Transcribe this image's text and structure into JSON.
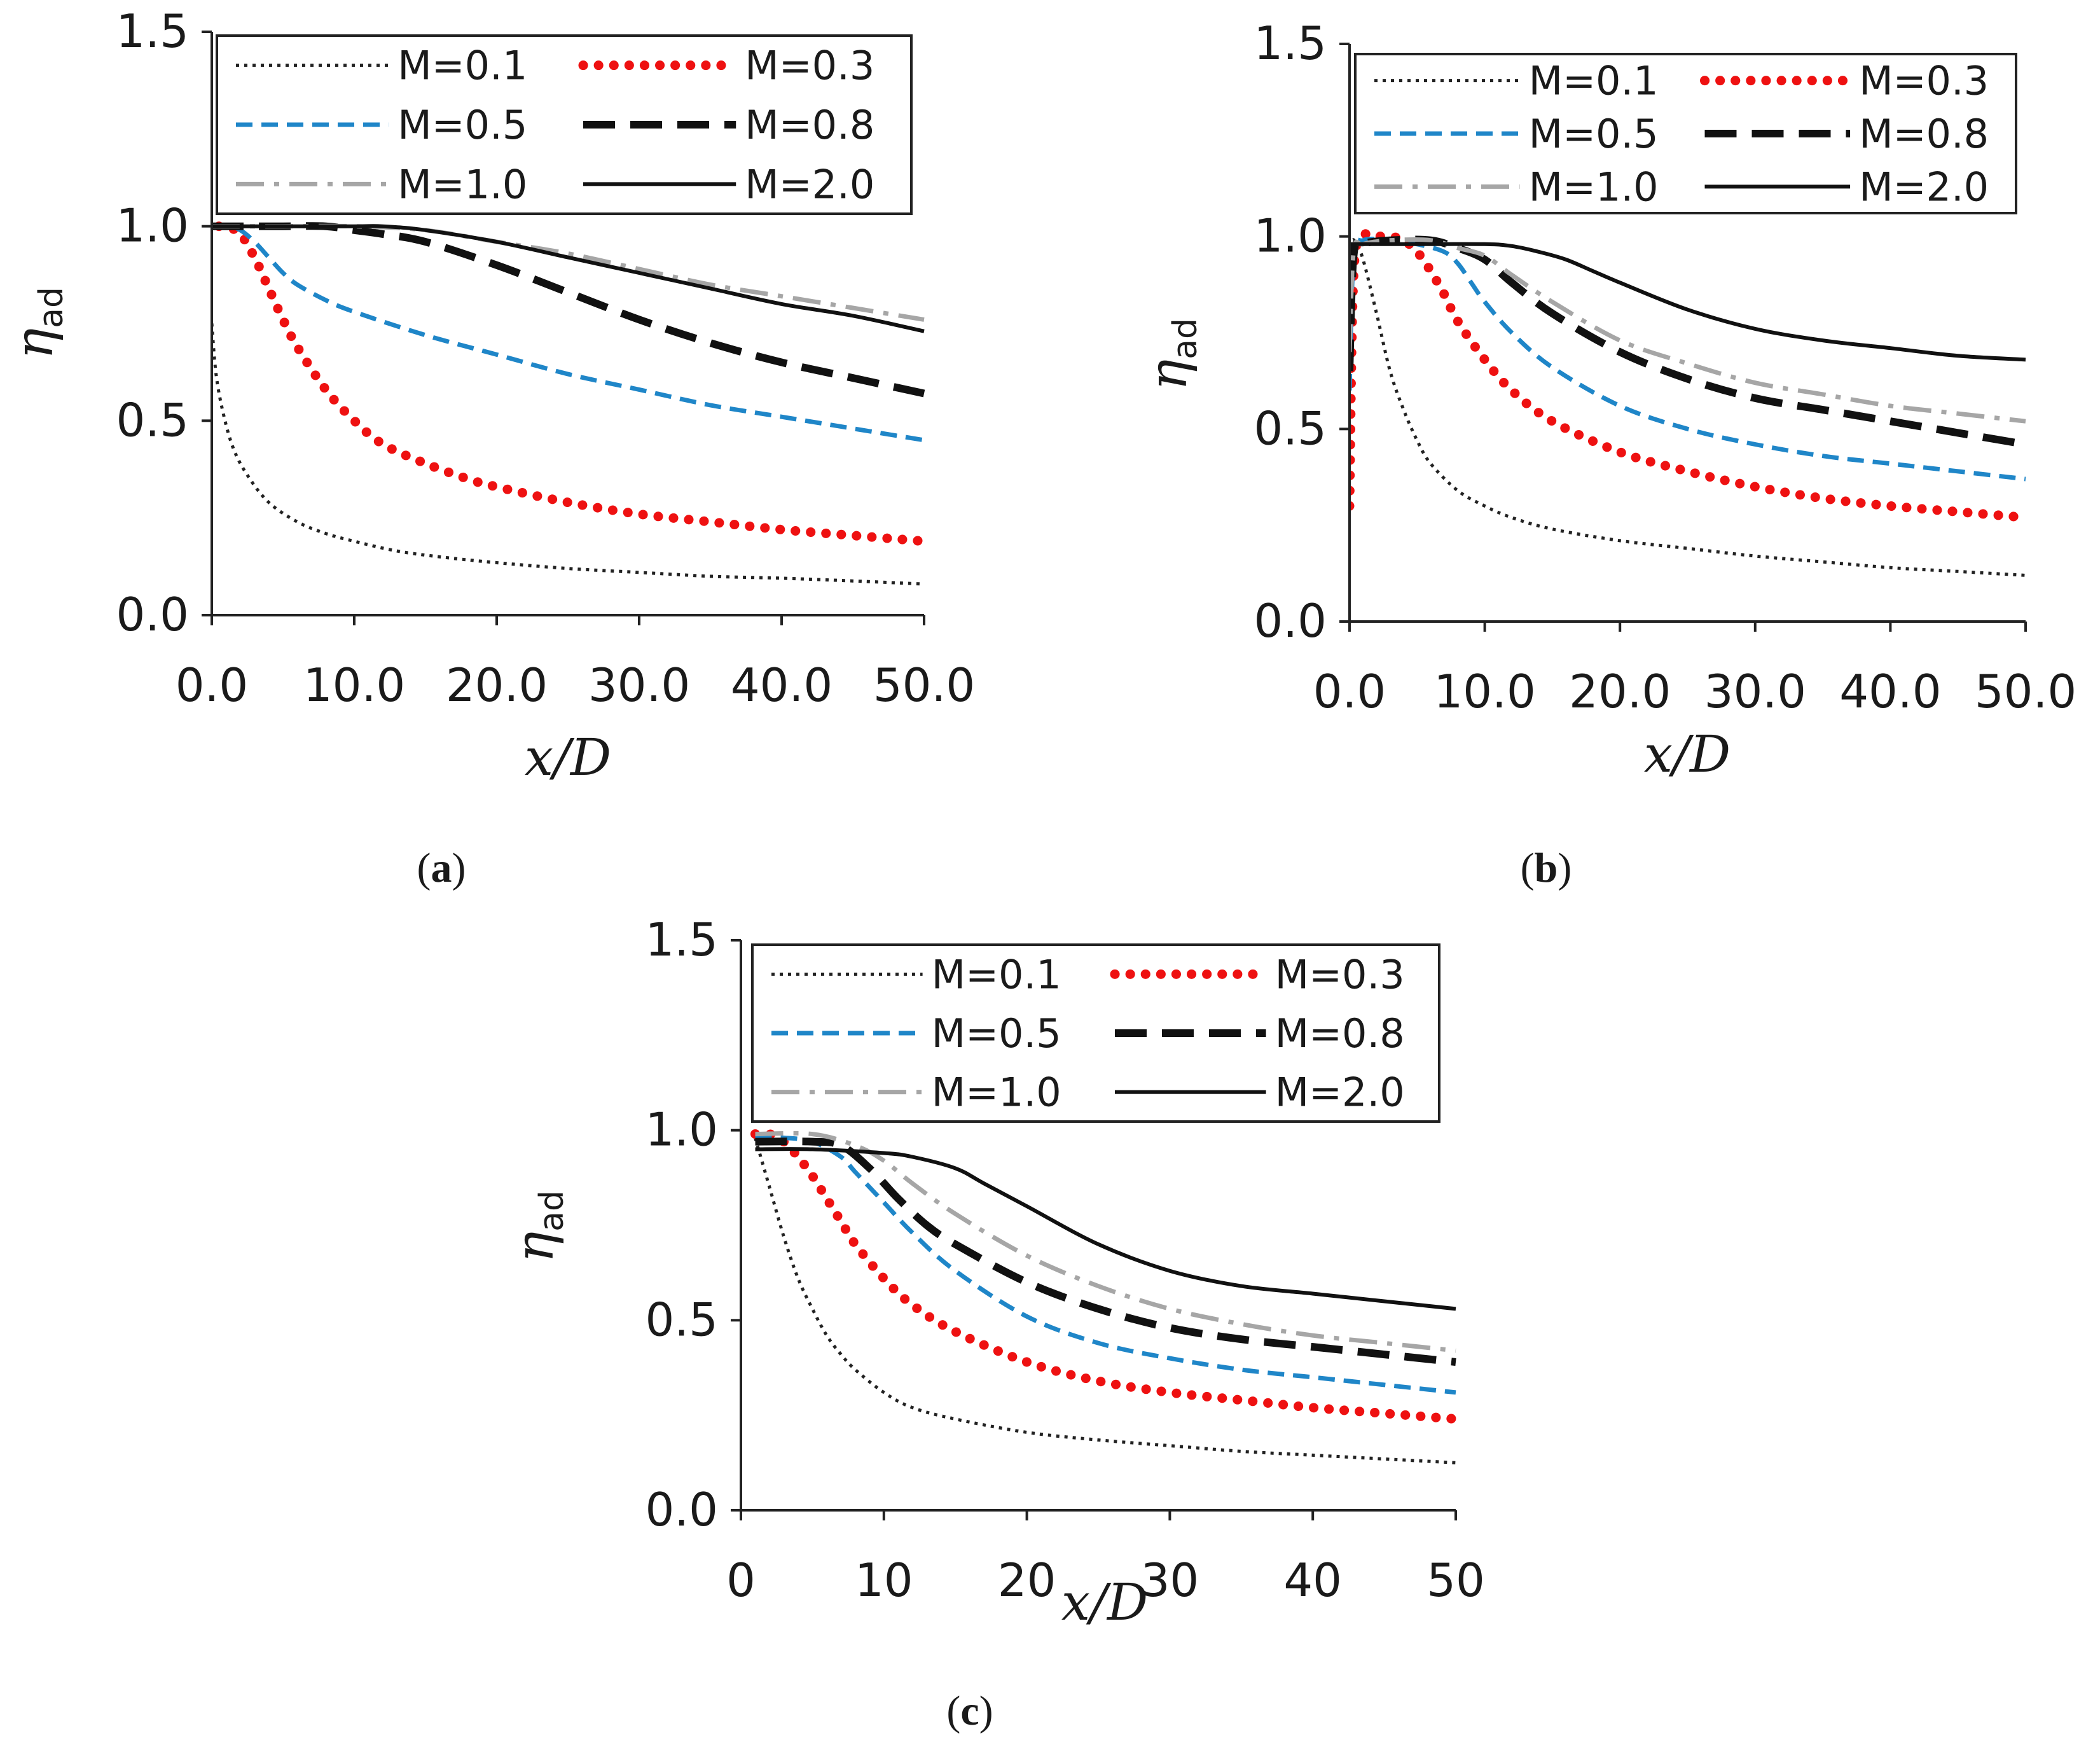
{
  "chart_data": [
    {
      "type": "line",
      "panel_label": "a",
      "xlabel": "x/D",
      "ylabel": "η",
      "ylabel_sub": "ad",
      "xlim": [
        0,
        50
      ],
      "ylim": [
        0,
        1.5
      ],
      "xticks": [
        "0.0",
        "10.0",
        "20.0",
        "30.0",
        "40.0",
        "50.0"
      ],
      "yticks": [
        "0.0",
        "0.5",
        "1.0",
        "1.5"
      ],
      "legend_position": "top",
      "series": [
        {
          "name": "M=0.1",
          "style": "dotted-thin",
          "color": "#222222",
          "x": [
            0,
            0.3,
            0.8,
            1.5,
            2.5,
            4,
            6,
            8,
            10,
            13,
            16,
            20,
            25,
            30,
            35,
            40,
            45,
            50
          ],
          "y": [
            0.75,
            0.62,
            0.52,
            0.43,
            0.36,
            0.29,
            0.24,
            0.21,
            0.19,
            0.165,
            0.15,
            0.135,
            0.12,
            0.11,
            0.1,
            0.095,
            0.088,
            0.08
          ]
        },
        {
          "name": "M=0.3",
          "style": "dotted-bold",
          "color": "#ee1111",
          "x": [
            0.5,
            1,
            2,
            3,
            4,
            5,
            6,
            8,
            10,
            12,
            15,
            18,
            20,
            25,
            30,
            35,
            40,
            45,
            50
          ],
          "y": [
            1.0,
            1.0,
            0.98,
            0.92,
            0.84,
            0.76,
            0.69,
            0.58,
            0.5,
            0.44,
            0.39,
            0.35,
            0.33,
            0.29,
            0.26,
            0.24,
            0.22,
            0.205,
            0.19
          ]
        },
        {
          "name": "M=0.5",
          "style": "dashed",
          "color": "#1f86c8",
          "x": [
            0,
            1,
            2,
            3,
            4,
            5,
            6,
            8,
            10,
            15,
            20,
            25,
            30,
            35,
            40,
            45,
            50
          ],
          "y": [
            1.0,
            1.0,
            0.99,
            0.96,
            0.92,
            0.88,
            0.85,
            0.81,
            0.78,
            0.72,
            0.67,
            0.62,
            0.58,
            0.54,
            0.51,
            0.48,
            0.45
          ]
        },
        {
          "name": "M=0.8",
          "style": "long-dash",
          "color": "#111111",
          "x": [
            0,
            5,
            8,
            10,
            12,
            15,
            20,
            25,
            30,
            35,
            40,
            45,
            50
          ],
          "y": [
            1.0,
            1.0,
            1.0,
            0.99,
            0.98,
            0.96,
            0.9,
            0.83,
            0.76,
            0.7,
            0.65,
            0.61,
            0.57
          ]
        },
        {
          "name": "M=1.0",
          "style": "dash-dot",
          "color": "#a6a6a6",
          "x": [
            0,
            5,
            10,
            15,
            20,
            25,
            30,
            35,
            40,
            45,
            50
          ],
          "y": [
            1.0,
            1.0,
            1.0,
            0.99,
            0.96,
            0.93,
            0.89,
            0.85,
            0.82,
            0.79,
            0.76
          ]
        },
        {
          "name": "M=2.0",
          "style": "solid",
          "color": "#111111",
          "x": [
            0,
            5,
            10,
            12,
            15,
            20,
            25,
            30,
            35,
            40,
            45,
            50
          ],
          "y": [
            1.0,
            1.0,
            1.0,
            1.0,
            0.99,
            0.96,
            0.92,
            0.88,
            0.84,
            0.8,
            0.77,
            0.73
          ]
        }
      ]
    },
    {
      "type": "line",
      "panel_label": "b",
      "xlabel": "x/D",
      "ylabel": "η",
      "ylabel_sub": "ad",
      "xlim": [
        0,
        50
      ],
      "ylim": [
        0,
        1.5
      ],
      "xticks": [
        "0.0",
        "10.0",
        "20.0",
        "30.0",
        "40.0",
        "50.0"
      ],
      "yticks": [
        "0.0",
        "0.5",
        "1.0",
        "1.5"
      ],
      "legend_position": "top",
      "series": [
        {
          "name": "M=0.1",
          "style": "dotted-thin",
          "color": "#222222",
          "x": [
            0,
            0.2,
            0.5,
            1,
            2,
            3,
            4,
            5,
            6,
            8,
            10,
            12,
            15,
            20,
            25,
            30,
            35,
            40,
            45,
            50
          ],
          "y": [
            0.95,
            0.99,
            0.98,
            0.94,
            0.8,
            0.65,
            0.55,
            0.47,
            0.41,
            0.34,
            0.3,
            0.27,
            0.24,
            0.21,
            0.19,
            0.17,
            0.155,
            0.14,
            0.13,
            0.12
          ]
        },
        {
          "name": "M=0.3",
          "style": "dotted-bold",
          "color": "#ee1111",
          "x": [
            0,
            0.3,
            1,
            2,
            3,
            4,
            5,
            6,
            7,
            8,
            10,
            12,
            15,
            20,
            25,
            30,
            35,
            40,
            45,
            50
          ],
          "y": [
            0.3,
            0.9,
            1.0,
            1.0,
            1.0,
            0.99,
            0.96,
            0.91,
            0.85,
            0.78,
            0.68,
            0.6,
            0.52,
            0.44,
            0.39,
            0.35,
            0.32,
            0.3,
            0.285,
            0.27
          ]
        },
        {
          "name": "M=0.5",
          "style": "dashed",
          "color": "#1f86c8",
          "x": [
            0,
            0.3,
            1,
            3,
            5,
            7,
            8,
            9,
            10,
            12,
            15,
            20,
            25,
            30,
            35,
            40,
            45,
            50
          ],
          "y": [
            0.6,
            0.95,
            0.99,
            0.99,
            0.98,
            0.96,
            0.93,
            0.88,
            0.83,
            0.75,
            0.66,
            0.56,
            0.5,
            0.46,
            0.43,
            0.41,
            0.39,
            0.37
          ]
        },
        {
          "name": "M=0.8",
          "style": "long-dash",
          "color": "#111111",
          "x": [
            0,
            0.3,
            1,
            3,
            6,
            8,
            10,
            12,
            15,
            20,
            25,
            30,
            35,
            40,
            45,
            50
          ],
          "y": [
            0.65,
            0.95,
            0.98,
            0.99,
            0.99,
            0.97,
            0.94,
            0.88,
            0.8,
            0.7,
            0.63,
            0.58,
            0.55,
            0.52,
            0.49,
            0.46
          ]
        },
        {
          "name": "M=1.0",
          "style": "dash-dot",
          "color": "#a6a6a6",
          "x": [
            0,
            0.3,
            1,
            3,
            6,
            8,
            10,
            12,
            15,
            20,
            25,
            30,
            35,
            40,
            45,
            50
          ],
          "y": [
            0.7,
            0.96,
            0.98,
            0.99,
            0.99,
            0.97,
            0.95,
            0.9,
            0.83,
            0.73,
            0.67,
            0.62,
            0.59,
            0.56,
            0.54,
            0.52
          ]
        },
        {
          "name": "M=2.0",
          "style": "solid",
          "color": "#111111",
          "x": [
            0,
            0.5,
            1,
            5,
            10,
            12,
            14,
            16,
            18,
            20,
            25,
            30,
            35,
            40,
            45,
            50
          ],
          "y": [
            0.98,
            0.98,
            0.98,
            0.98,
            0.98,
            0.975,
            0.96,
            0.94,
            0.91,
            0.88,
            0.81,
            0.76,
            0.73,
            0.71,
            0.69,
            0.68
          ]
        }
      ]
    },
    {
      "type": "line",
      "panel_label": "c",
      "xlabel": "x/D",
      "ylabel": "η",
      "ylabel_sub": "ad",
      "xlim": [
        0,
        50
      ],
      "ylim": [
        0,
        1.5
      ],
      "xticks": [
        "0",
        "10",
        "20",
        "30",
        "40",
        "50"
      ],
      "yticks": [
        "0.0",
        "0.5",
        "1.0",
        "1.5"
      ],
      "legend_position": "top",
      "series": [
        {
          "name": "M=0.1",
          "style": "dotted-thin",
          "color": "#222222",
          "x": [
            1,
            2,
            3,
            4,
            5,
            6,
            7,
            8,
            10,
            12,
            15,
            20,
            25,
            30,
            35,
            40,
            45,
            50
          ],
          "y": [
            0.98,
            0.85,
            0.72,
            0.61,
            0.53,
            0.46,
            0.41,
            0.37,
            0.31,
            0.27,
            0.24,
            0.205,
            0.185,
            0.17,
            0.155,
            0.145,
            0.135,
            0.125
          ]
        },
        {
          "name": "M=0.3",
          "style": "dotted-bold",
          "color": "#ee1111",
          "x": [
            1,
            2,
            3,
            4,
            5,
            6,
            7,
            8,
            10,
            12,
            15,
            20,
            25,
            30,
            35,
            40,
            45,
            50
          ],
          "y": [
            0.99,
            0.99,
            0.97,
            0.93,
            0.88,
            0.82,
            0.76,
            0.7,
            0.61,
            0.54,
            0.47,
            0.39,
            0.34,
            0.31,
            0.29,
            0.27,
            0.255,
            0.24
          ]
        },
        {
          "name": "M=0.5",
          "style": "dashed",
          "color": "#1f86c8",
          "x": [
            1,
            3,
            5,
            7,
            8,
            10,
            12,
            15,
            20,
            25,
            30,
            35,
            40,
            45,
            50
          ],
          "y": [
            0.98,
            0.98,
            0.97,
            0.93,
            0.89,
            0.81,
            0.73,
            0.63,
            0.51,
            0.44,
            0.4,
            0.37,
            0.35,
            0.33,
            0.31
          ]
        },
        {
          "name": "M=0.8",
          "style": "long-dash",
          "color": "#111111",
          "x": [
            1,
            5,
            7,
            9,
            11,
            13,
            15,
            20,
            25,
            30,
            35,
            40,
            45,
            50
          ],
          "y": [
            0.97,
            0.97,
            0.96,
            0.9,
            0.82,
            0.75,
            0.7,
            0.6,
            0.53,
            0.48,
            0.45,
            0.43,
            0.41,
            0.39
          ]
        },
        {
          "name": "M=1.0",
          "style": "dash-dot",
          "color": "#a6a6a6",
          "x": [
            1,
            5,
            8,
            10,
            12,
            15,
            20,
            25,
            30,
            35,
            40,
            45,
            50
          ],
          "y": [
            0.99,
            0.99,
            0.96,
            0.92,
            0.86,
            0.78,
            0.67,
            0.59,
            0.53,
            0.49,
            0.46,
            0.44,
            0.42
          ]
        },
        {
          "name": "M=2.0",
          "style": "solid",
          "color": "#111111",
          "x": [
            1,
            5,
            10,
            12,
            15,
            17,
            20,
            25,
            30,
            35,
            40,
            45,
            50
          ],
          "y": [
            0.95,
            0.95,
            0.94,
            0.93,
            0.9,
            0.86,
            0.8,
            0.7,
            0.63,
            0.59,
            0.57,
            0.55,
            0.53
          ]
        }
      ]
    }
  ]
}
